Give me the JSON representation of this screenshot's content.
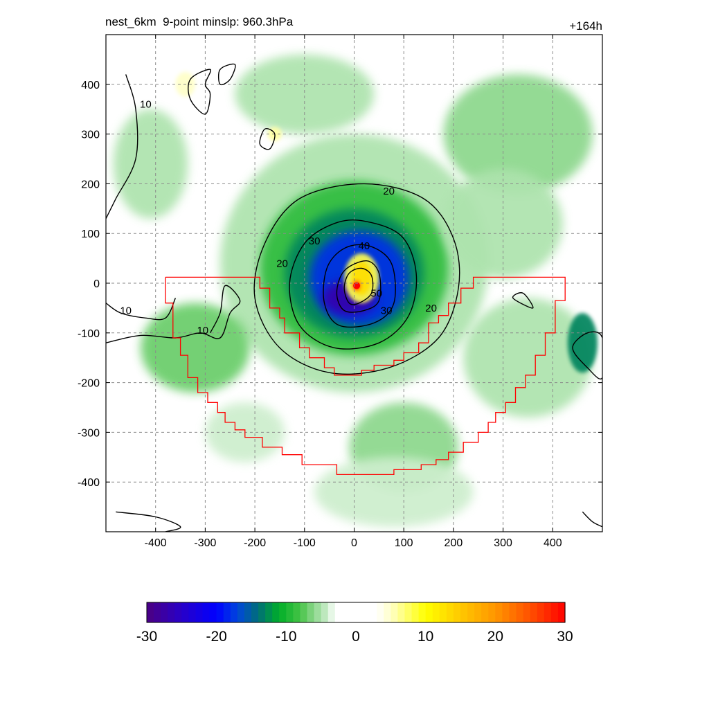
{
  "title": {
    "left": "nest_6km  9-point minslp: 960.3hPa",
    "right": "+164h"
  },
  "chart_data": {
    "type": "heatmap",
    "x_ticks": [
      -400,
      -300,
      -200,
      -100,
      0,
      100,
      200,
      300,
      400
    ],
    "y_ticks": [
      400,
      300,
      200,
      100,
      0,
      -100,
      -200,
      -300,
      -400
    ],
    "xlim": [
      -500,
      500
    ],
    "ylim": [
      -500,
      500
    ],
    "grid": true,
    "colorbar": {
      "ticks": [
        -30,
        -20,
        -10,
        0,
        10,
        20,
        30
      ],
      "range": [
        -30,
        30
      ]
    },
    "contour_levels": [
      "10",
      "20",
      "30",
      "40",
      "50"
    ],
    "contour_labels": [
      {
        "text": "10",
        "x": -420,
        "y": 360
      },
      {
        "text": "10",
        "x": -460,
        "y": -55
      },
      {
        "text": "10",
        "x": -305,
        "y": -95
      },
      {
        "text": "20",
        "x": 70,
        "y": 185
      },
      {
        "text": "20",
        "x": -145,
        "y": 40
      },
      {
        "text": "20",
        "x": 155,
        "y": -50
      },
      {
        "text": "30",
        "x": -80,
        "y": 85
      },
      {
        "text": "30",
        "x": 65,
        "y": -55
      },
      {
        "text": "40",
        "x": 20,
        "y": 75
      },
      {
        "text": "50",
        "x": 45,
        "y": -20
      }
    ],
    "storm_center": {
      "x": 5,
      "y": -5
    },
    "filled_blobs": [
      {
        "x": 0,
        "y": 40,
        "rx": 270,
        "ry": 260,
        "value": -5
      },
      {
        "x": 0,
        "y": 30,
        "rx": 190,
        "ry": 175,
        "value": -9
      },
      {
        "x": 0,
        "y": 20,
        "rx": 140,
        "ry": 130,
        "value": -13
      },
      {
        "x": 10,
        "y": 10,
        "rx": 100,
        "ry": 95,
        "value": -18
      },
      {
        "x": -10,
        "y": -30,
        "rx": 55,
        "ry": 35,
        "value": -27
      },
      {
        "x": 15,
        "y": 10,
        "rx": 35,
        "ry": 50,
        "value": 8
      },
      {
        "x": 15,
        "y": 10,
        "rx": 20,
        "ry": 34,
        "value": 13
      },
      {
        "x": 5,
        "y": -5,
        "rx": 7,
        "ry": 9,
        "value": 28
      },
      {
        "x": -320,
        "y": -130,
        "rx": 110,
        "ry": 90,
        "value": -7
      },
      {
        "x": -410,
        "y": 240,
        "rx": 75,
        "ry": 110,
        "value": -5
      },
      {
        "x": 330,
        "y": 300,
        "rx": 150,
        "ry": 120,
        "value": -6
      },
      {
        "x": 300,
        "y": 120,
        "rx": 120,
        "ry": 110,
        "value": -5
      },
      {
        "x": 350,
        "y": -150,
        "rx": 130,
        "ry": 120,
        "value": -5
      },
      {
        "x": 460,
        "y": -120,
        "rx": 30,
        "ry": 60,
        "value": -13
      },
      {
        "x": 100,
        "y": -330,
        "rx": 110,
        "ry": 90,
        "value": -6
      },
      {
        "x": 80,
        "y": -420,
        "rx": 160,
        "ry": 70,
        "value": -4
      },
      {
        "x": -100,
        "y": 380,
        "rx": 140,
        "ry": 80,
        "value": -5
      },
      {
        "x": -220,
        "y": -300,
        "rx": 80,
        "ry": 60,
        "value": -4
      },
      {
        "x": -340,
        "y": 400,
        "rx": 20,
        "ry": 25,
        "value": 5
      },
      {
        "x": -160,
        "y": 300,
        "rx": 14,
        "ry": 14,
        "value": 6
      }
    ],
    "contours": [
      [
        [
          15,
          30
        ],
        [
          35,
          15
        ],
        [
          35,
          -20
        ],
        [
          10,
          -40
        ],
        [
          -10,
          -40
        ],
        [
          -20,
          -10
        ],
        [
          -10,
          20
        ]
      ],
      [
        [
          25,
          45
        ],
        [
          50,
          20
        ],
        [
          50,
          -35
        ],
        [
          20,
          -55
        ],
        [
          -20,
          -55
        ],
        [
          -35,
          -20
        ],
        [
          -20,
          25
        ]
      ],
      [
        [
          30,
          75
        ],
        [
          75,
          40
        ],
        [
          80,
          -40
        ],
        [
          40,
          -80
        ],
        [
          -30,
          -85
        ],
        [
          -60,
          -40
        ],
        [
          -55,
          30
        ],
        [
          -20,
          70
        ]
      ],
      [
        [
          20,
          125
        ],
        [
          95,
          95
        ],
        [
          125,
          20
        ],
        [
          110,
          -65
        ],
        [
          50,
          -120
        ],
        [
          -40,
          -130
        ],
        [
          -110,
          -85
        ],
        [
          -130,
          0
        ],
        [
          -100,
          80
        ],
        [
          -40,
          120
        ]
      ],
      [
        [
          20,
          200
        ],
        [
          140,
          170
        ],
        [
          200,
          90
        ],
        [
          210,
          -10
        ],
        [
          170,
          -110
        ],
        [
          70,
          -170
        ],
        [
          -50,
          -180
        ],
        [
          -150,
          -130
        ],
        [
          -200,
          -30
        ],
        [
          -180,
          80
        ],
        [
          -110,
          170
        ]
      ],
      [
        [
          -460,
          420
        ],
        [
          -440,
          350
        ],
        [
          -440,
          250
        ],
        [
          -480,
          170
        ],
        [
          -500,
          130
        ]
      ],
      [
        [
          -500,
          -120
        ],
        [
          -430,
          -105
        ],
        [
          -360,
          -110
        ],
        [
          -310,
          -100
        ],
        [
          -270,
          -110
        ],
        [
          -250,
          -60
        ],
        [
          -230,
          -35
        ],
        [
          -260,
          -5
        ],
        [
          -270,
          -60
        ],
        [
          -290,
          -100
        ]
      ],
      [
        [
          -500,
          -40
        ],
        [
          -470,
          -60
        ],
        [
          -420,
          -70
        ],
        [
          -380,
          -70
        ],
        [
          -360,
          -30
        ]
      ],
      [
        [
          -300,
          400
        ],
        [
          -290,
          430
        ],
        [
          -330,
          410
        ],
        [
          -330,
          370
        ],
        [
          -300,
          340
        ],
        [
          -290,
          380
        ]
      ],
      [
        [
          -250,
          410
        ],
        [
          -240,
          440
        ],
        [
          -270,
          430
        ],
        [
          -270,
          400
        ]
      ],
      [
        [
          -180,
          310
        ],
        [
          -160,
          300
        ],
        [
          -170,
          270
        ],
        [
          -190,
          280
        ]
      ],
      [
        [
          440,
          -130
        ],
        [
          470,
          -100
        ],
        [
          500,
          -110
        ],
        [
          500,
          -190
        ],
        [
          470,
          -170
        ]
      ],
      [
        [
          320,
          -30
        ],
        [
          360,
          -50
        ],
        [
          340,
          -20
        ]
      ],
      [
        [
          -480,
          -460
        ],
        [
          -400,
          -470
        ],
        [
          -350,
          -490
        ],
        [
          -380,
          -500
        ]
      ],
      [
        [
          460,
          -460
        ],
        [
          480,
          -480
        ],
        [
          500,
          -490
        ]
      ]
    ],
    "region_outline": [
      [
        -380,
        12
      ],
      [
        -190,
        12
      ],
      [
        -190,
        -10
      ],
      [
        -170,
        -10
      ],
      [
        -170,
        -50
      ],
      [
        -150,
        -50
      ],
      [
        -150,
        -70
      ],
      [
        -140,
        -70
      ],
      [
        -140,
        -100
      ],
      [
        -110,
        -100
      ],
      [
        -110,
        -130
      ],
      [
        -90,
        -130
      ],
      [
        -90,
        -150
      ],
      [
        -60,
        -150
      ],
      [
        -60,
        -170
      ],
      [
        -40,
        -170
      ],
      [
        -40,
        -185
      ],
      [
        15,
        -185
      ],
      [
        15,
        -175
      ],
      [
        40,
        -175
      ],
      [
        40,
        -165
      ],
      [
        80,
        -165
      ],
      [
        80,
        -155
      ],
      [
        100,
        -155
      ],
      [
        100,
        -140
      ],
      [
        130,
        -140
      ],
      [
        130,
        -120
      ],
      [
        150,
        -120
      ],
      [
        150,
        -80
      ],
      [
        170,
        -80
      ],
      [
        170,
        -65
      ],
      [
        190,
        -65
      ],
      [
        190,
        -40
      ],
      [
        215,
        -40
      ],
      [
        215,
        -10
      ],
      [
        240,
        -10
      ],
      [
        240,
        12
      ],
      [
        425,
        12
      ],
      [
        425,
        -35
      ],
      [
        405,
        -35
      ],
      [
        405,
        -100
      ],
      [
        385,
        -100
      ],
      [
        385,
        -145
      ],
      [
        365,
        -145
      ],
      [
        365,
        -185
      ],
      [
        345,
        -185
      ],
      [
        345,
        -210
      ],
      [
        325,
        -210
      ],
      [
        325,
        -240
      ],
      [
        305,
        -240
      ],
      [
        305,
        -260
      ],
      [
        285,
        -260
      ],
      [
        285,
        -280
      ],
      [
        270,
        -280
      ],
      [
        270,
        -300
      ],
      [
        250,
        -300
      ],
      [
        250,
        -320
      ],
      [
        220,
        -320
      ],
      [
        220,
        -340
      ],
      [
        190,
        -340
      ],
      [
        190,
        -355
      ],
      [
        165,
        -355
      ],
      [
        165,
        -365
      ],
      [
        135,
        -365
      ],
      [
        135,
        -375
      ],
      [
        80,
        -375
      ],
      [
        80,
        -385
      ],
      [
        -35,
        -385
      ],
      [
        -35,
        -365
      ],
      [
        -105,
        -365
      ],
      [
        -105,
        -345
      ],
      [
        -145,
        -345
      ],
      [
        -145,
        -330
      ],
      [
        -185,
        -330
      ],
      [
        -185,
        -310
      ],
      [
        -220,
        -310
      ],
      [
        -220,
        -295
      ],
      [
        -240,
        -295
      ],
      [
        -240,
        -280
      ],
      [
        -260,
        -280
      ],
      [
        -260,
        -260
      ],
      [
        -275,
        -260
      ],
      [
        -275,
        -240
      ],
      [
        -295,
        -240
      ],
      [
        -295,
        -220
      ],
      [
        -315,
        -220
      ],
      [
        -315,
        -190
      ],
      [
        -335,
        -190
      ],
      [
        -335,
        -145
      ],
      [
        -350,
        -145
      ],
      [
        -350,
        -110
      ],
      [
        -365,
        -110
      ],
      [
        -365,
        -40
      ],
      [
        -380,
        -40
      ],
      [
        -380,
        12
      ]
    ]
  }
}
